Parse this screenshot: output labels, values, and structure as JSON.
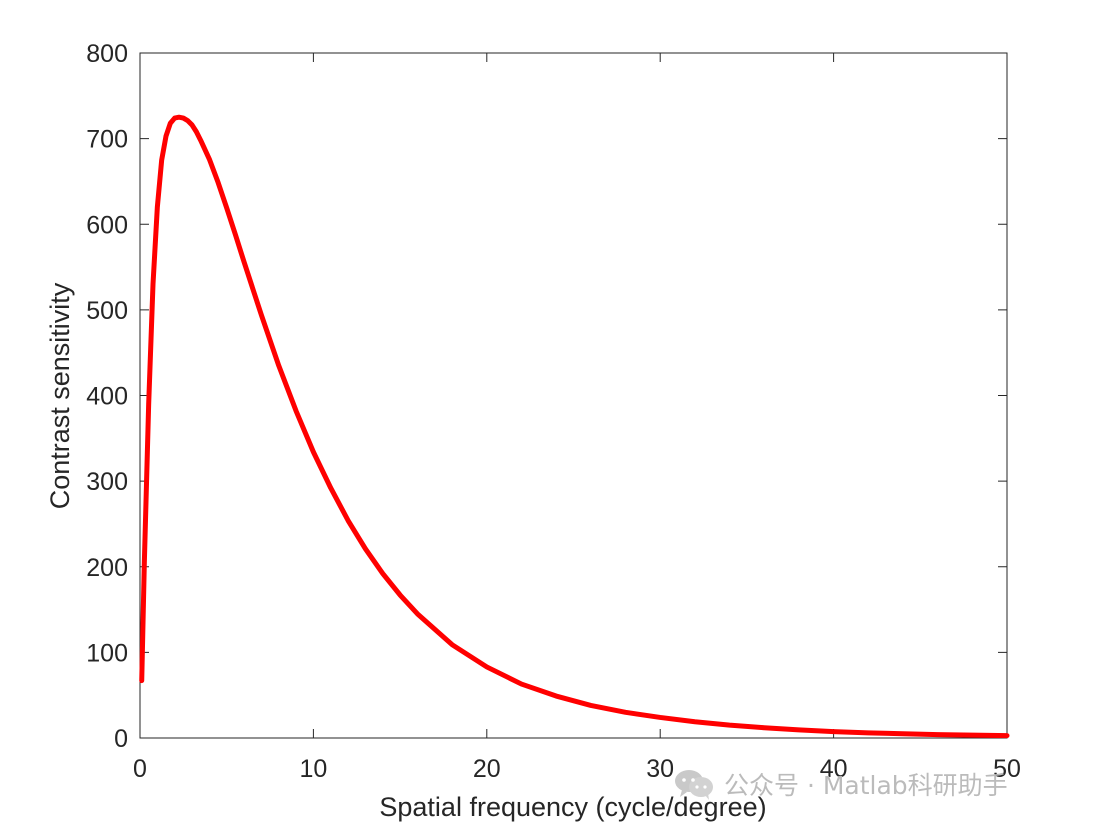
{
  "chart_data": {
    "type": "line",
    "title": "",
    "xlabel": "Spatial frequency (cycle/degree)",
    "ylabel": "Contrast sensitivity",
    "xlim": [
      0,
      50
    ],
    "ylim": [
      0,
      800
    ],
    "x_ticks": [
      0,
      10,
      20,
      30,
      40,
      50
    ],
    "y_ticks": [
      0,
      100,
      200,
      300,
      400,
      500,
      600,
      700,
      800
    ],
    "x_tick_labels": [
      "0",
      "10",
      "20",
      "30",
      "40",
      "50"
    ],
    "y_tick_labels": [
      "0",
      "100",
      "200",
      "300",
      "400",
      "500",
      "600",
      "700",
      "800"
    ],
    "grid": false,
    "legend": "none",
    "series": [
      {
        "color": "#ff0000",
        "x": [
          0.1,
          0.25,
          0.5,
          0.75,
          1.0,
          1.25,
          1.5,
          1.75,
          2.0,
          2.25,
          2.5,
          2.75,
          3.0,
          3.25,
          3.5,
          4.0,
          4.5,
          5.0,
          5.5,
          6.0,
          6.5,
          7.0,
          8.0,
          9.0,
          10.0,
          11.0,
          12.0,
          13.0,
          14.0,
          15.0,
          16.0,
          18.0,
          20.0,
          22.0,
          24.0,
          26.0,
          28.0,
          30.0,
          32.0,
          34.0,
          36.0,
          38.0,
          40.0,
          42.0,
          44.0,
          46.0,
          48.0,
          50.0
        ],
        "y": [
          67,
          205,
          390,
          530,
          620,
          675,
          703,
          718,
          724,
          725,
          724,
          721,
          716,
          708,
          698,
          676,
          649,
          619,
          588,
          556,
          525,
          494,
          435,
          382,
          334,
          292,
          254,
          221,
          192,
          167,
          145,
          109,
          83,
          63,
          49,
          38,
          30,
          24,
          19,
          15,
          12,
          9.5,
          7.5,
          6,
          5,
          4,
          3.4,
          2.8
        ]
      }
    ]
  },
  "watermark": {
    "text": "公众号 · Matlab科研助手",
    "icon": "wechat-icon",
    "color": "#b8b8b8"
  }
}
